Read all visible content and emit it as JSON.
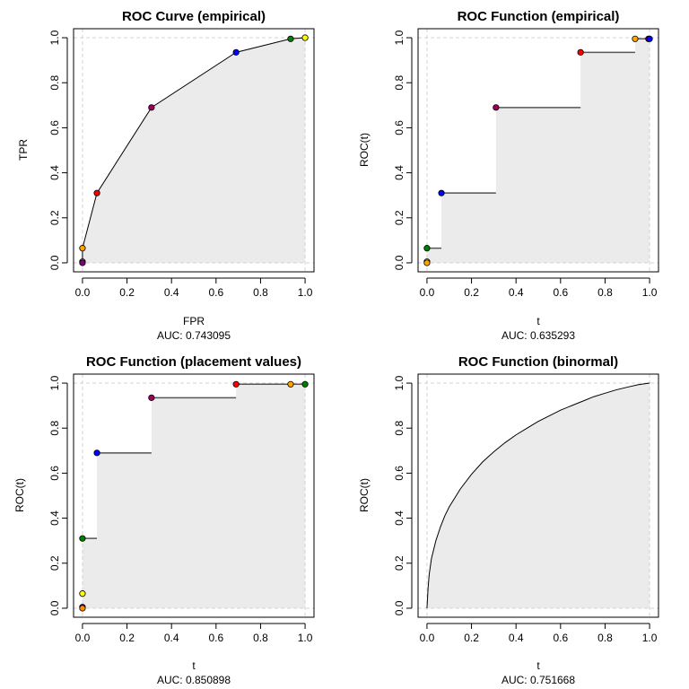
{
  "chart_data": [
    {
      "type": "line",
      "title": "ROC Curve (empirical)",
      "xlabel": "FPR",
      "ylabel": "TPR",
      "auc": "AUC: 0.743095",
      "xlim": [
        0,
        1
      ],
      "ylim": [
        0,
        1
      ],
      "xticks": [
        "0.0",
        "0.2",
        "0.4",
        "0.6",
        "0.8",
        "1.0"
      ],
      "yticks": [
        "0.0",
        "0.2",
        "0.4",
        "0.6",
        "0.8",
        "1.0"
      ],
      "series": [
        {
          "style": "polyline",
          "x": [
            0,
            0,
            0,
            0.065,
            0.31,
            0.69,
            0.935,
            1.0,
            1.0
          ],
          "y": [
            0,
            0.005,
            0.065,
            0.31,
            0.69,
            0.935,
            0.995,
            1.0,
            1.0
          ]
        }
      ],
      "points": [
        {
          "x": 0,
          "y": 0.005,
          "color": "#ff8c00"
        },
        {
          "x": 0,
          "y": 0.0,
          "color": "#800080"
        },
        {
          "x": 0,
          "y": 0.065,
          "color": "#ffa500"
        },
        {
          "x": 0.065,
          "y": 0.31,
          "color": "#ff0000"
        },
        {
          "x": 0.31,
          "y": 0.69,
          "color": "#a0005a"
        },
        {
          "x": 0.69,
          "y": 0.935,
          "color": "#0000ff"
        },
        {
          "x": 0.935,
          "y": 0.995,
          "color": "#008000"
        },
        {
          "x": 1.0,
          "y": 1.0,
          "color": "#ffff00"
        }
      ]
    },
    {
      "type": "line",
      "title": "ROC Function (empirical)",
      "xlabel": "t",
      "ylabel": "ROC(t)",
      "auc": "AUC: 0.635293",
      "xlim": [
        0,
        1
      ],
      "ylim": [
        0,
        1
      ],
      "xticks": [
        "0.0",
        "0.2",
        "0.4",
        "0.6",
        "0.8",
        "1.0"
      ],
      "yticks": [
        "0.0",
        "0.2",
        "0.4",
        "0.6",
        "0.8",
        "1.0"
      ],
      "steps": [
        {
          "x0": 0,
          "x1": 0.065,
          "y": 0.065
        },
        {
          "x0": 0.065,
          "x1": 0.31,
          "y": 0.31
        },
        {
          "x0": 0.31,
          "x1": 0.69,
          "y": 0.69
        },
        {
          "x0": 0.69,
          "x1": 0.935,
          "y": 0.935
        },
        {
          "x0": 0.935,
          "x1": 1.0,
          "y": 0.995
        }
      ],
      "points": [
        {
          "x": 0,
          "y": 0.005,
          "color": "#ffff00"
        },
        {
          "x": 0,
          "y": 0.0,
          "color": "#ffa500"
        },
        {
          "x": 0,
          "y": 0.065,
          "color": "#008000"
        },
        {
          "x": 0.065,
          "y": 0.31,
          "color": "#0000ff"
        },
        {
          "x": 0.31,
          "y": 0.69,
          "color": "#a0005a"
        },
        {
          "x": 0.69,
          "y": 0.935,
          "color": "#ff0000"
        },
        {
          "x": 0.935,
          "y": 0.995,
          "color": "#ffa500"
        },
        {
          "x": 0.995,
          "y": 0.995,
          "color": "#800080"
        },
        {
          "x": 1.0,
          "y": 0.995,
          "color": "#0000ff"
        }
      ]
    },
    {
      "type": "line",
      "title": "ROC Function (placement values)",
      "xlabel": "t",
      "ylabel": "ROC(t)",
      "auc": "AUC: 0.850898",
      "xlim": [
        0,
        1
      ],
      "ylim": [
        0,
        1
      ],
      "xticks": [
        "0.0",
        "0.2",
        "0.4",
        "0.6",
        "0.8",
        "1.0"
      ],
      "yticks": [
        "0.0",
        "0.2",
        "0.4",
        "0.6",
        "0.8",
        "1.0"
      ],
      "steps": [
        {
          "x0": 0,
          "x1": 0.065,
          "y": 0.31
        },
        {
          "x0": 0.065,
          "x1": 0.31,
          "y": 0.69
        },
        {
          "x0": 0.31,
          "x1": 0.69,
          "y": 0.935
        },
        {
          "x0": 0.69,
          "x1": 1.0,
          "y": 0.995
        }
      ],
      "points": [
        {
          "x": 0,
          "y": 0.005,
          "color": "#800080"
        },
        {
          "x": 0,
          "y": 0.0,
          "color": "#ff8c00"
        },
        {
          "x": 0,
          "y": 0.065,
          "color": "#ffff00"
        },
        {
          "x": 0,
          "y": 0.31,
          "color": "#008000"
        },
        {
          "x": 0.065,
          "y": 0.69,
          "color": "#0000ff"
        },
        {
          "x": 0.31,
          "y": 0.935,
          "color": "#a0005a"
        },
        {
          "x": 0.69,
          "y": 0.995,
          "color": "#ff0000"
        },
        {
          "x": 0.935,
          "y": 0.995,
          "color": "#ffa500"
        },
        {
          "x": 1.0,
          "y": 0.995,
          "color": "#008000"
        }
      ]
    },
    {
      "type": "line",
      "title": "ROC Function (binormal)",
      "xlabel": "t",
      "ylabel": "ROC(t)",
      "auc": "AUC: 0.751668",
      "xlim": [
        0,
        1
      ],
      "ylim": [
        0,
        1
      ],
      "xticks": [
        "0.0",
        "0.2",
        "0.4",
        "0.6",
        "0.8",
        "1.0"
      ],
      "yticks": [
        "0.0",
        "0.2",
        "0.4",
        "0.6",
        "0.8",
        "1.0"
      ],
      "curve": {
        "x": [
          0,
          0.005,
          0.01,
          0.02,
          0.04,
          0.06,
          0.08,
          0.1,
          0.15,
          0.2,
          0.25,
          0.3,
          0.35,
          0.4,
          0.45,
          0.5,
          0.55,
          0.6,
          0.65,
          0.7,
          0.75,
          0.8,
          0.85,
          0.9,
          0.95,
          1.0
        ],
        "y": [
          0,
          0.09,
          0.15,
          0.22,
          0.3,
          0.36,
          0.41,
          0.45,
          0.53,
          0.595,
          0.65,
          0.695,
          0.735,
          0.77,
          0.8,
          0.83,
          0.855,
          0.88,
          0.9,
          0.92,
          0.94,
          0.955,
          0.97,
          0.982,
          0.993,
          1.0
        ]
      }
    }
  ],
  "colors": {
    "fill": "#ebebeb",
    "refline": "#d3d3d3",
    "step": "#555555",
    "axis": "#000000"
  }
}
